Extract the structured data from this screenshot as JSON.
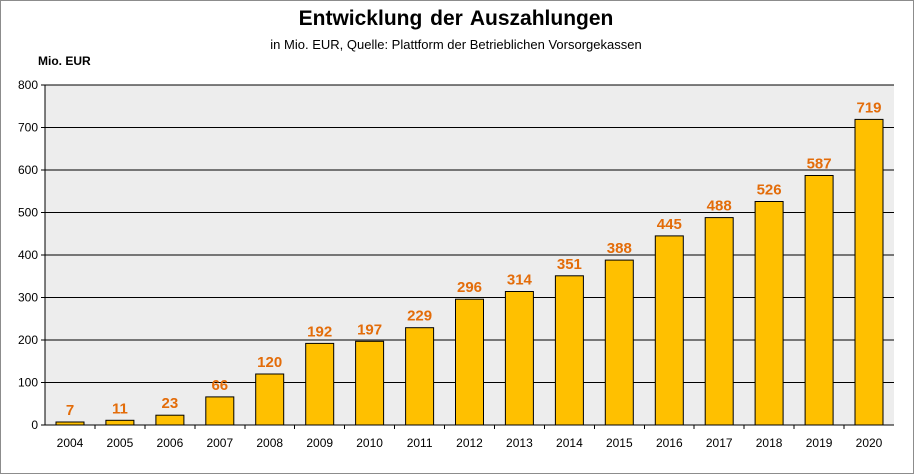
{
  "chart_data": {
    "type": "bar",
    "title": "Entwicklung  der Auszahlungen",
    "subtitle": "in Mio. EUR, Quelle: Plattform der Betrieblichen Vorsorgekassen",
    "ylabel": "Mio. EUR",
    "xlabel": "",
    "categories": [
      "2004",
      "2005",
      "2006",
      "2007",
      "2008",
      "2009",
      "2010",
      "2011",
      "2012",
      "2013",
      "2014",
      "2015",
      "2016",
      "2017",
      "2018",
      "2019",
      "2020"
    ],
    "values": [
      7,
      11,
      23,
      66,
      120,
      192,
      197,
      229,
      296,
      314,
      351,
      388,
      445,
      488,
      526,
      587,
      719
    ],
    "ylim": [
      0,
      800
    ],
    "yticks": [
      0,
      100,
      200,
      300,
      400,
      500,
      600,
      700,
      800
    ],
    "grid": true,
    "legend": "none",
    "colors": {
      "bar_fill": "#FFC000",
      "bar_stroke": "#000000",
      "data_label": "#E36C09",
      "plot_background": "#EDEDED",
      "gridline": "#000000"
    }
  }
}
